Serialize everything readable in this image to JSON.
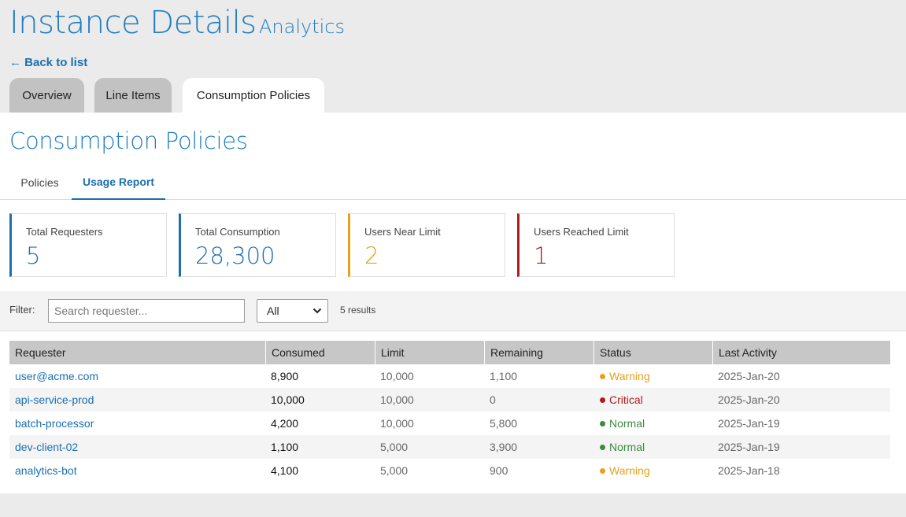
{
  "header": {
    "title": "Instance Details",
    "subtitle": "Analytics",
    "back_link": "← Back to list",
    "tabs": [
      {
        "label": "Overview",
        "active": false
      },
      {
        "label": "Line Items",
        "active": false
      },
      {
        "label": "Consumption Policies",
        "active": true
      }
    ]
  },
  "section": {
    "title": "Consumption Policies",
    "subtabs": [
      {
        "label": "Policies",
        "active": false
      },
      {
        "label": "Usage Report",
        "active": true
      }
    ]
  },
  "cards": [
    {
      "label": "Total Requesters",
      "value": "5",
      "color": "#1f6fae"
    },
    {
      "label": "Total Consumption",
      "value": "28,300",
      "color": "#1f6fae"
    },
    {
      "label": "Users Near Limit",
      "value": "2",
      "color": "#e3a11d"
    },
    {
      "label": "Users Reached Limit",
      "value": "1",
      "color": "#b01c1c"
    }
  ],
  "filter": {
    "label": "Filter:",
    "search_placeholder": "Search requester...",
    "search_value": "",
    "status_selected": "All",
    "results": "5 results"
  },
  "table": {
    "headers": [
      "Requester",
      "Consumed",
      "Limit",
      "Remaining",
      "Status",
      "Last Activity"
    ],
    "rows": [
      {
        "requester": "user@acme.com",
        "consumed": "8,900",
        "limit": "10,000",
        "remaining": "1,100",
        "status": "Warning",
        "last_activity": "2025-Jan-20"
      },
      {
        "requester": "api-service-prod",
        "consumed": "10,000",
        "limit": "10,000",
        "remaining": "0",
        "status": "Critical",
        "last_activity": "2025-Jan-20"
      },
      {
        "requester": "batch-processor",
        "consumed": "4,200",
        "limit": "10,000",
        "remaining": "5,800",
        "status": "Normal",
        "last_activity": "2025-Jan-19"
      },
      {
        "requester": "dev-client-02",
        "consumed": "1,100",
        "limit": "5,000",
        "remaining": "3,900",
        "status": "Normal",
        "last_activity": "2025-Jan-19"
      },
      {
        "requester": "analytics-bot",
        "consumed": "4,100",
        "limit": "5,000",
        "remaining": "900",
        "status": "Warning",
        "last_activity": "2025-Jan-18"
      }
    ]
  },
  "status_colors": {
    "Warning": "#e3a11d",
    "Critical": "#b01c1c",
    "Normal": "#3d8a3d"
  }
}
